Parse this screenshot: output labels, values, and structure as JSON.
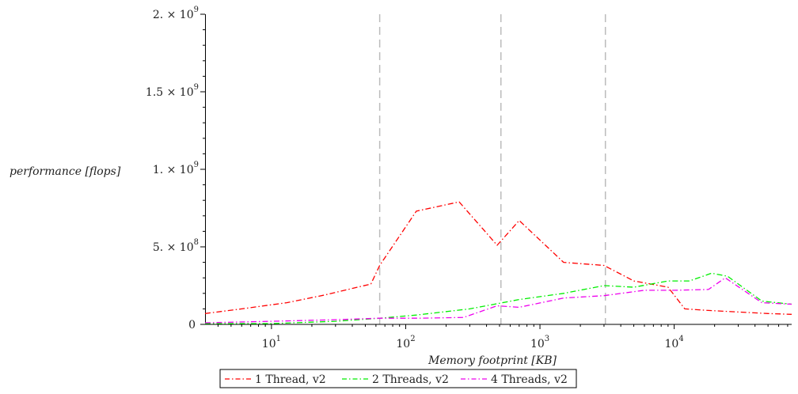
{
  "chart_data": {
    "type": "line",
    "xlabel": "Memory footprint [KB]",
    "ylabel": "performance [flops]",
    "x_scale": "log",
    "xlim": [
      3.2,
      75000
    ],
    "ylim": [
      0,
      2000000000
    ],
    "x_ticks": [
      {
        "value": 10,
        "base": "10",
        "exp": "1"
      },
      {
        "value": 100,
        "base": "10",
        "exp": "2"
      },
      {
        "value": 1000,
        "base": "10",
        "exp": "3"
      },
      {
        "value": 10000,
        "base": "10",
        "exp": "4"
      }
    ],
    "y_ticks": [
      {
        "value": 0,
        "mant": "0",
        "exp": ""
      },
      {
        "value": 500000000,
        "mant": "5. × 10",
        "exp": "8"
      },
      {
        "value": 1000000000,
        "mant": "1. × 10",
        "exp": "9"
      },
      {
        "value": 1500000000,
        "mant": "1.5 × 10",
        "exp": "9"
      },
      {
        "value": 2000000000,
        "mant": "2. × 10",
        "exp": "9"
      }
    ],
    "vlines": [
      64,
      512,
      3072
    ],
    "grid": false,
    "legend_position": "bottom-center",
    "series": [
      {
        "name": "1 Thread, v2",
        "color": "#ff0000",
        "points": [
          [
            3.2,
            70000000
          ],
          [
            6,
            100000000
          ],
          [
            13,
            140000000
          ],
          [
            25,
            190000000
          ],
          [
            55,
            260000000
          ],
          [
            64,
            380000000
          ],
          [
            120,
            730000000
          ],
          [
            250,
            790000000
          ],
          [
            480,
            510000000
          ],
          [
            700,
            670000000
          ],
          [
            1500,
            400000000
          ],
          [
            3000,
            380000000
          ],
          [
            5000,
            280000000
          ],
          [
            9000,
            240000000
          ],
          [
            12000,
            100000000
          ],
          [
            18000,
            90000000
          ],
          [
            50000,
            70000000
          ],
          [
            75000,
            65000000
          ]
        ]
      },
      {
        "name": "2 Threads, v2",
        "color": "#00ee00",
        "points": [
          [
            3.2,
            5000000
          ],
          [
            10,
            5000000
          ],
          [
            30,
            20000000
          ],
          [
            64,
            40000000
          ],
          [
            120,
            60000000
          ],
          [
            300,
            100000000
          ],
          [
            700,
            160000000
          ],
          [
            1500,
            200000000
          ],
          [
            3000,
            250000000
          ],
          [
            5000,
            240000000
          ],
          [
            9000,
            280000000
          ],
          [
            13000,
            280000000
          ],
          [
            19000,
            330000000
          ],
          [
            25000,
            310000000
          ],
          [
            45000,
            150000000
          ],
          [
            75000,
            130000000
          ]
        ]
      },
      {
        "name": "4 Threads, v2",
        "color": "#ee00ee",
        "points": [
          [
            3.2,
            10000000
          ],
          [
            10,
            20000000
          ],
          [
            30,
            30000000
          ],
          [
            64,
            40000000
          ],
          [
            130,
            40000000
          ],
          [
            270,
            45000000
          ],
          [
            480,
            120000000
          ],
          [
            700,
            110000000
          ],
          [
            1500,
            170000000
          ],
          [
            3000,
            185000000
          ],
          [
            6000,
            220000000
          ],
          [
            10000,
            220000000
          ],
          [
            18000,
            225000000
          ],
          [
            24000,
            300000000
          ],
          [
            45000,
            140000000
          ],
          [
            75000,
            130000000
          ]
        ]
      }
    ]
  }
}
